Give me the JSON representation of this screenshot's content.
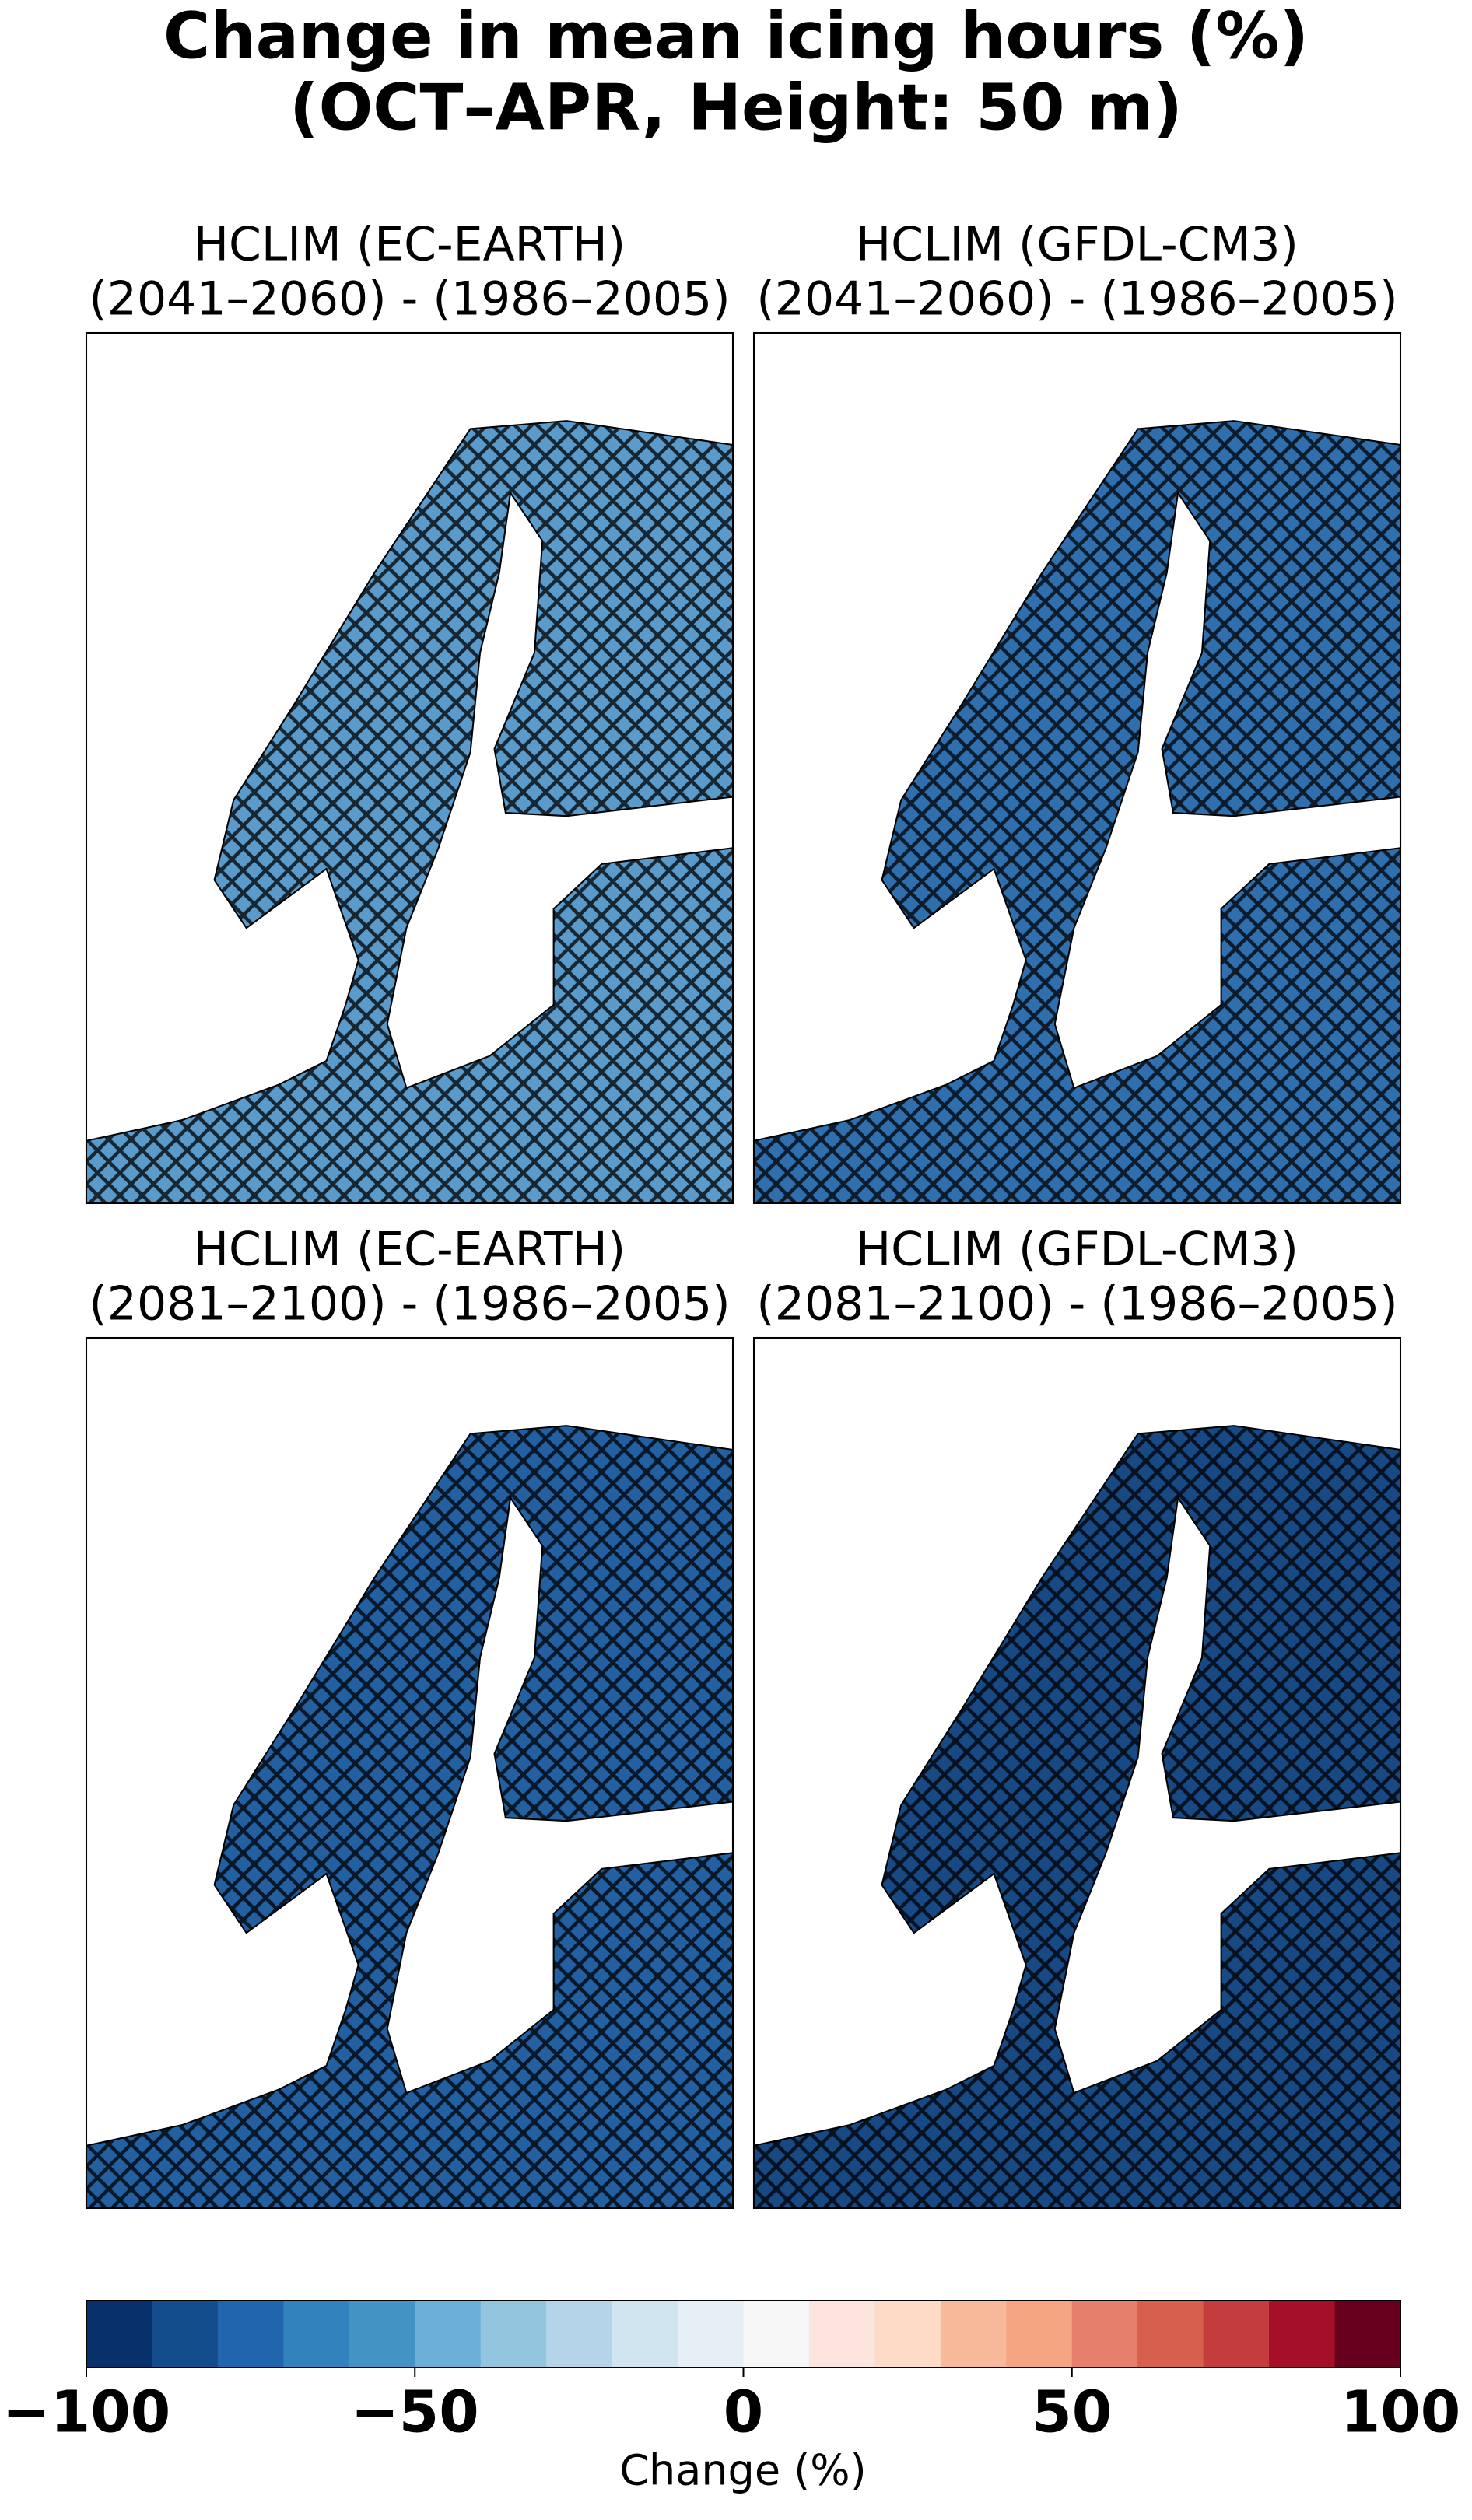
{
  "title": [
    "Change in mean icing hours (%)",
    "(OCT–APR, Height: 50 m)"
  ],
  "panels": [
    {
      "title": [
        "HCLIM (EC-EARTH)",
        "(2041–2060) - (1986–2005)"
      ],
      "color": "#5a9bcb"
    },
    {
      "title": [
        "HCLIM (GFDL-CM3)",
        "(2041–2060) - (1986–2005)"
      ],
      "color": "#2f6fae"
    },
    {
      "title": [
        "HCLIM (EC-EARTH)",
        "(2081–2100) - (1986–2005)"
      ],
      "color": "#2260a2"
    },
    {
      "title": [
        "HCLIM (GFDL-CM3)",
        "(2081–2100) - (1986–2005)"
      ],
      "color": "#174a85"
    }
  ],
  "colorbar": {
    "label": "Change (%)",
    "lim": [
      -100,
      100
    ],
    "ticks": [
      {
        "value": -100,
        "label": "−100"
      },
      {
        "value": -50,
        "label": "−50"
      },
      0,
      50,
      100
    ],
    "colors": [
      "#08306b",
      "#134d8c",
      "#2166ac",
      "#3182bd",
      "#4393c3",
      "#6baed6",
      "#92c5de",
      "#b5d4e9",
      "#d1e5f0",
      "#e7eff6",
      "#f7f7f7",
      "#fbe5dc",
      "#fddbc7",
      "#f8b99a",
      "#f4a582",
      "#e6806a",
      "#d6604d",
      "#c43c3c",
      "#a50f28",
      "#67001f"
    ]
  }
}
